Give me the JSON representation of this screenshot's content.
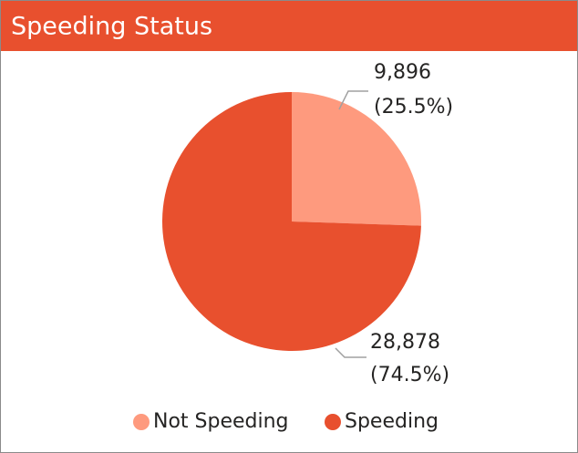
{
  "chart_data": {
    "type": "pie",
    "title": "Speeding Status",
    "categories": [
      "Not Speeding",
      "Speeding"
    ],
    "values": [
      9896,
      28878
    ],
    "value_labels": [
      [
        "9,896",
        "(25.5%)"
      ],
      [
        "28,878",
        "(74.5%)"
      ]
    ],
    "colors": [
      "#fe9a7e",
      "#e8502e"
    ],
    "legend": "bottom"
  }
}
